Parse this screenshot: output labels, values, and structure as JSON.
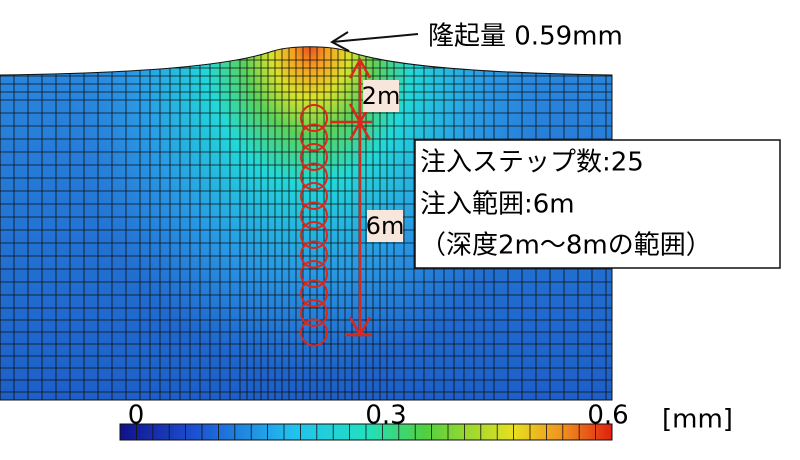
{
  "annotation": {
    "heave": "隆起量 0.59mm",
    "upper_depth": "2m",
    "range_depth": "6m"
  },
  "info_box": {
    "lines": [
      "注入ステップ数:25",
      "注入範囲:6m",
      "（深度2m〜8mの範囲）"
    ]
  },
  "colorbar": {
    "labels": [
      "0",
      "0.3",
      "0.6"
    ],
    "unit": "[mm]"
  }
}
